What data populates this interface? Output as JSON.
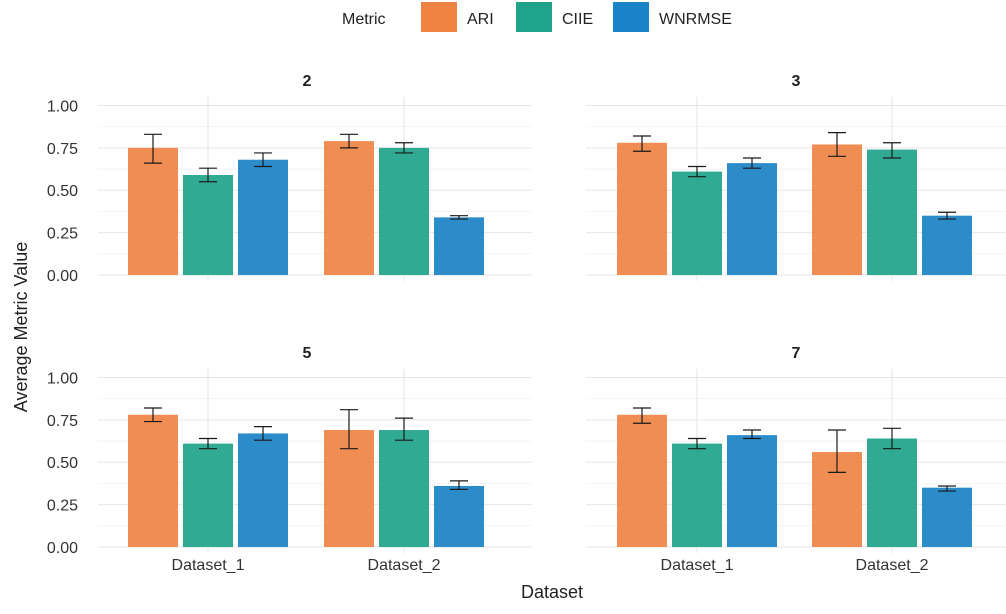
{
  "chart_data": {
    "type": "bar",
    "legend": {
      "title": "Metric",
      "position": "top",
      "items": [
        {
          "name": "ARI",
          "color": "#EE8343"
        },
        {
          "name": "CIIE",
          "color": "#1FA38A"
        },
        {
          "name": "WNRMSE",
          "color": "#1A82C6"
        }
      ]
    },
    "xlabel": "Dataset",
    "ylabel": "Average Metric Value",
    "ylim": [
      0,
      1.05
    ],
    "yticks": [
      "0.00",
      "0.25",
      "0.50",
      "0.75",
      "1.00"
    ],
    "ytick_values": [
      0,
      0.25,
      0.5,
      0.75,
      1.0
    ],
    "categories": [
      "Dataset_1",
      "Dataset_2"
    ],
    "grid": true,
    "panels": [
      {
        "title": "2",
        "series": [
          {
            "name": "ARI",
            "values": [
              0.75,
              0.79
            ],
            "err_low": [
              0.66,
              0.75
            ],
            "err_high": [
              0.83,
              0.83
            ]
          },
          {
            "name": "CIIE",
            "values": [
              0.59,
              0.75
            ],
            "err_low": [
              0.55,
              0.72
            ],
            "err_high": [
              0.63,
              0.78
            ]
          },
          {
            "name": "WNRMSE",
            "values": [
              0.68,
              0.34
            ],
            "err_low": [
              0.64,
              0.33
            ],
            "err_high": [
              0.72,
              0.35
            ]
          }
        ]
      },
      {
        "title": "3",
        "series": [
          {
            "name": "ARI",
            "values": [
              0.78,
              0.77
            ],
            "err_low": [
              0.73,
              0.7
            ],
            "err_high": [
              0.82,
              0.84
            ]
          },
          {
            "name": "CIIE",
            "values": [
              0.61,
              0.74
            ],
            "err_low": [
              0.58,
              0.69
            ],
            "err_high": [
              0.64,
              0.78
            ]
          },
          {
            "name": "WNRMSE",
            "values": [
              0.66,
              0.35
            ],
            "err_low": [
              0.63,
              0.33
            ],
            "err_high": [
              0.69,
              0.37
            ]
          }
        ]
      },
      {
        "title": "5",
        "series": [
          {
            "name": "ARI",
            "values": [
              0.78,
              0.69
            ],
            "err_low": [
              0.74,
              0.58
            ],
            "err_high": [
              0.82,
              0.81
            ]
          },
          {
            "name": "CIIE",
            "values": [
              0.61,
              0.69
            ],
            "err_low": [
              0.58,
              0.63
            ],
            "err_high": [
              0.64,
              0.76
            ]
          },
          {
            "name": "WNRMSE",
            "values": [
              0.67,
              0.36
            ],
            "err_low": [
              0.63,
              0.34
            ],
            "err_high": [
              0.71,
              0.39
            ]
          }
        ]
      },
      {
        "title": "7",
        "series": [
          {
            "name": "ARI",
            "values": [
              0.78,
              0.56
            ],
            "err_low": [
              0.73,
              0.44
            ],
            "err_high": [
              0.82,
              0.69
            ]
          },
          {
            "name": "CIIE",
            "values": [
              0.61,
              0.64
            ],
            "err_low": [
              0.58,
              0.58
            ],
            "err_high": [
              0.64,
              0.7
            ]
          },
          {
            "name": "WNRMSE",
            "values": [
              0.66,
              0.35
            ],
            "err_low": [
              0.64,
              0.33
            ],
            "err_high": [
              0.69,
              0.36
            ]
          }
        ]
      }
    ]
  }
}
